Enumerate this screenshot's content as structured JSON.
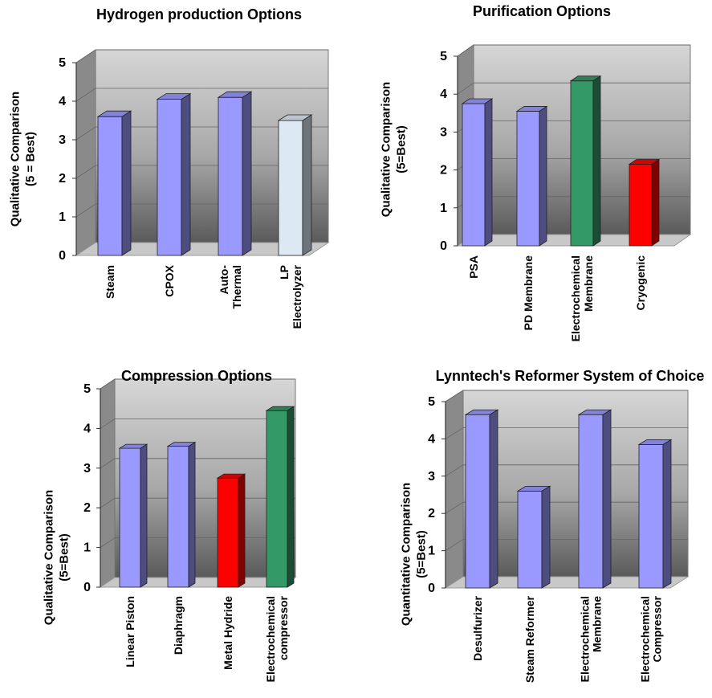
{
  "chart_data": [
    {
      "type": "bar",
      "title": "Hydrogen production Options",
      "ylabel": [
        "Qualitative Comparison",
        "(5 = Best)"
      ],
      "xlabel": "",
      "ylim": [
        0,
        5
      ],
      "yticks": [
        "0",
        "1",
        "2",
        "3",
        "4",
        "5"
      ],
      "categories": [
        [
          "Steam"
        ],
        [
          "CPOX"
        ],
        [
          "Auto-",
          "Thermal"
        ],
        [
          "LP",
          "Electrolyzer"
        ]
      ],
      "values": [
        3.6,
        4.05,
        4.1,
        3.5
      ],
      "bar_colors": [
        "#9999ff",
        "#9999ff",
        "#9999ff",
        "#dde8f5"
      ],
      "grid": true,
      "three_d": true
    },
    {
      "type": "bar",
      "title": "Purification Options",
      "ylabel": [
        "Qualitative Comparison",
        "(5=Best)"
      ],
      "xlabel": "",
      "ylim": [
        0,
        5
      ],
      "yticks": [
        "0",
        "1",
        "2",
        "3",
        "4",
        "5"
      ],
      "categories": [
        [
          "PSA"
        ],
        [
          "PD Membrane"
        ],
        [
          "Electrochemical",
          "Membrane"
        ],
        [
          "Cryogenic"
        ]
      ],
      "values": [
        3.75,
        3.55,
        4.35,
        2.15
      ],
      "bar_colors": [
        "#9999ff",
        "#9999ff",
        "#339966",
        "#ff0000"
      ],
      "grid": true,
      "three_d": true
    },
    {
      "type": "bar",
      "title": "Compression Options",
      "ylabel": [
        "Qualitative Comparison",
        "(5=Best)"
      ],
      "xlabel": "",
      "ylim": [
        0,
        5
      ],
      "yticks": [
        "0",
        "1",
        "2",
        "3",
        "4",
        "5"
      ],
      "categories": [
        [
          "Linear Piston"
        ],
        [
          "Diaphragm"
        ],
        [
          "Metal Hydride"
        ],
        [
          "Electrochemical",
          "compressor"
        ]
      ],
      "values": [
        3.5,
        3.55,
        2.75,
        4.45
      ],
      "bar_colors": [
        "#9999ff",
        "#9999ff",
        "#ff0000",
        "#339966"
      ],
      "grid": true,
      "three_d": true
    },
    {
      "type": "bar",
      "title": "Lynntech's Reformer System of Choice",
      "ylabel": [
        "Quantitative Comparison",
        "(5=Best)"
      ],
      "xlabel": "",
      "ylim": [
        0,
        5
      ],
      "yticks": [
        "0",
        "1",
        "2",
        "3",
        "4",
        "5"
      ],
      "categories": [
        [
          "Desulfurizer"
        ],
        [
          "Steam Reformer"
        ],
        [
          "Electrochemical",
          "Membrane"
        ],
        [
          "Electrochemical",
          "Compressor"
        ]
      ],
      "values": [
        4.65,
        2.6,
        4.65,
        3.85
      ],
      "bar_colors": [
        "#9999ff",
        "#9999ff",
        "#9999ff",
        "#9999ff"
      ],
      "grid": true,
      "three_d": true
    }
  ]
}
